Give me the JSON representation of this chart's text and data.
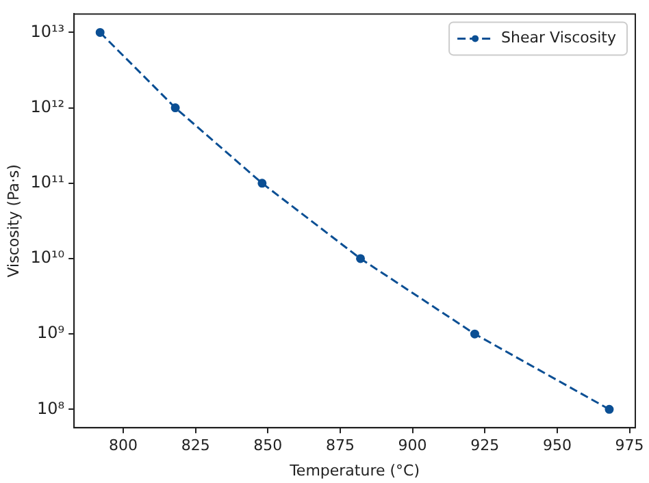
{
  "chart_data": {
    "type": "line",
    "xlabel": "Temperature (°C)",
    "ylabel": "Viscosity (Pa·s)",
    "x": [
      792,
      818,
      848,
      882,
      921.5,
      968
    ],
    "series": [
      {
        "name": "Shear Viscosity",
        "color": "#0b4f94",
        "values": [
          10000000000000.0,
          1000000000000.0,
          100000000000.0,
          10000000000.0,
          1000000000.0,
          100000000.0
        ]
      }
    ],
    "xlim": [
      783,
      977
    ],
    "xticks": [
      800,
      825,
      850,
      875,
      900,
      925,
      950,
      975
    ],
    "ylim": [
      57000000.0,
      17600000000000.0
    ],
    "yticks": [
      {
        "value": 100000000.0,
        "label": "10⁸"
      },
      {
        "value": 1000000000.0,
        "label": "10⁹"
      },
      {
        "value": 10000000000.0,
        "label": "10¹⁰"
      },
      {
        "value": 100000000000.0,
        "label": "10¹¹"
      },
      {
        "value": 1000000000000.0,
        "label": "10¹²"
      },
      {
        "value": 10000000000000.0,
        "label": "10¹³"
      }
    ],
    "log": "y",
    "grid": false,
    "legend": "top right",
    "marker": "circle",
    "line_style": "dashed"
  }
}
